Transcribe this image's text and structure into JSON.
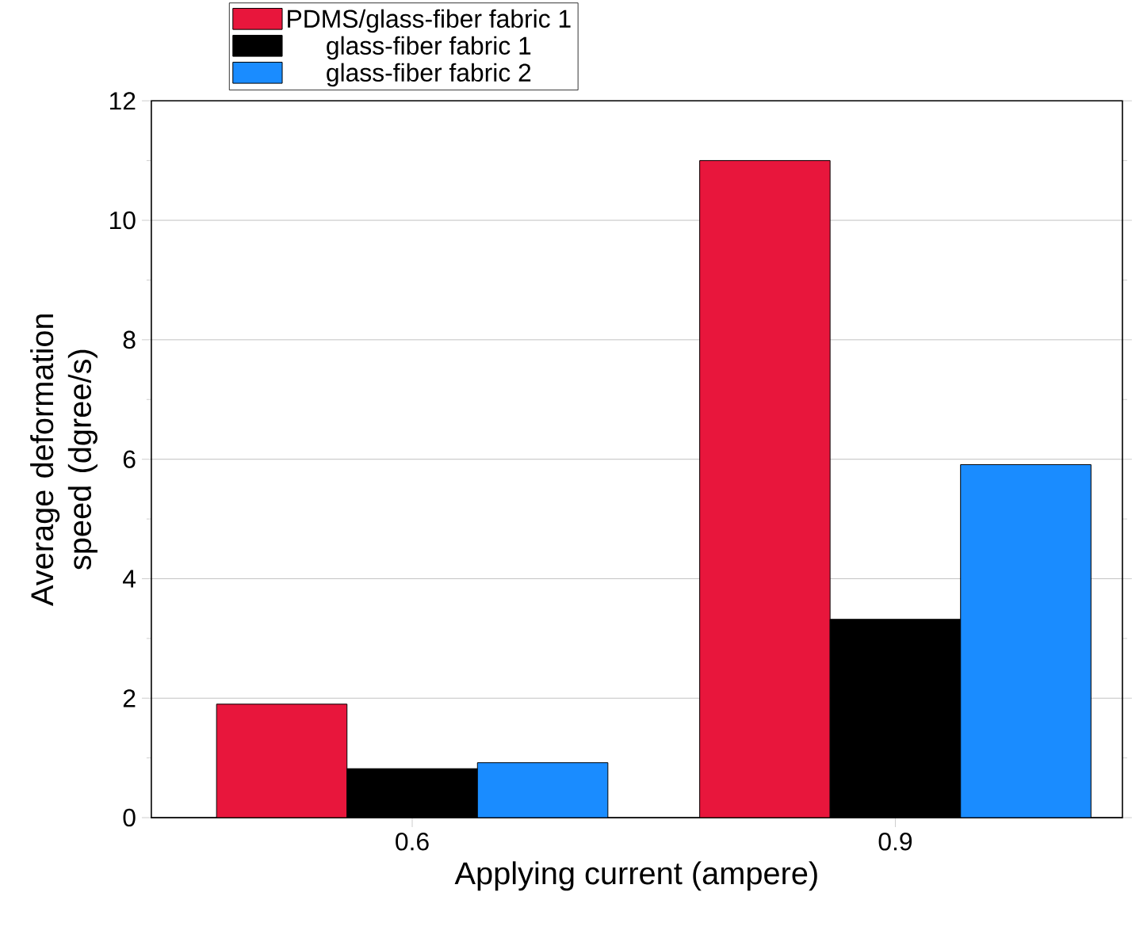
{
  "chart_data": {
    "type": "bar",
    "xlabel": "Applying current (ampere)",
    "ylabel": "Average deformation speed (dgree/s)",
    "categories": [
      "0.6",
      "0.9"
    ],
    "series": [
      {
        "name": "PDMS/glass-fiber fabric 1",
        "color": "#e8163c",
        "values": [
          1.9,
          11.0
        ]
      },
      {
        "name": "glass-fiber fabric 1",
        "color": "#000000",
        "values": [
          0.82,
          3.32
        ]
      },
      {
        "name": "glass-fiber fabric 2",
        "color": "#1a8cff",
        "values": [
          0.92,
          5.91
        ]
      }
    ],
    "ylim": [
      0,
      12
    ],
    "yticks": [
      0,
      2,
      4,
      6,
      8,
      10,
      12
    ],
    "grid": "y",
    "legend": "top left"
  }
}
